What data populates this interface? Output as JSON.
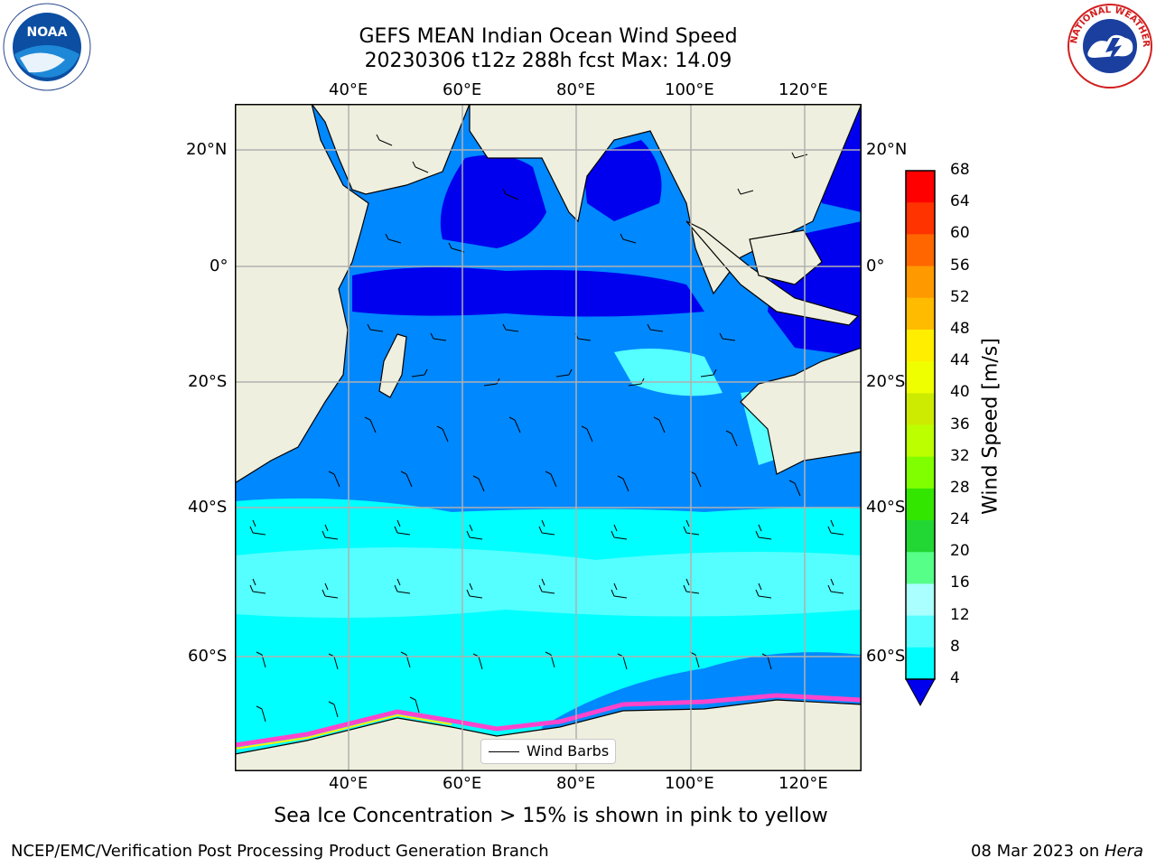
{
  "title": {
    "line1": "GEFS MEAN Indian Ocean Wind Speed",
    "line2": "20230306 t12z 288h fcst   Max: 14.09"
  },
  "map": {
    "lon_ticks": [
      "40°E",
      "60°E",
      "80°E",
      "100°E",
      "120°E"
    ],
    "lat_ticks_left": [
      "20°N",
      "0°",
      "20°S",
      "40°S",
      "60°S"
    ],
    "lat_ticks_right": [
      "20°N",
      "0°",
      "20°S",
      "40°S",
      "60°S"
    ],
    "land_color": "#efefdf",
    "legend_label": "Wind Barbs"
  },
  "colorbar": {
    "title": "Wind Speed [m/s]",
    "levels": [
      "68",
      "64",
      "60",
      "56",
      "52",
      "48",
      "44",
      "40",
      "36",
      "32",
      "28",
      "24",
      "20",
      "16",
      "12",
      "8",
      "4"
    ],
    "colors": [
      "#ff0000",
      "#ff3300",
      "#ff6600",
      "#ff9900",
      "#ffbb00",
      "#ffee00",
      "#f0ff00",
      "#cceb00",
      "#bbff00",
      "#80ff00",
      "#33e600",
      "#22d633",
      "#55ff88",
      "#aaffff",
      "#55ffff",
      "#00ffff",
      "#0088ff"
    ],
    "under_color": "#0000ee"
  },
  "caption": "Sea Ice Concentration > 15% is shown in pink to yellow",
  "footer": {
    "left": "NCEP/EMC/Verification Post Processing Product Generation Branch",
    "right_date": "08 Mar 2023 on ",
    "right_host": "Hera"
  },
  "logos": {
    "noaa_text": "NOAA",
    "nws_text": "NATIONAL WEATHER SERVICE"
  }
}
